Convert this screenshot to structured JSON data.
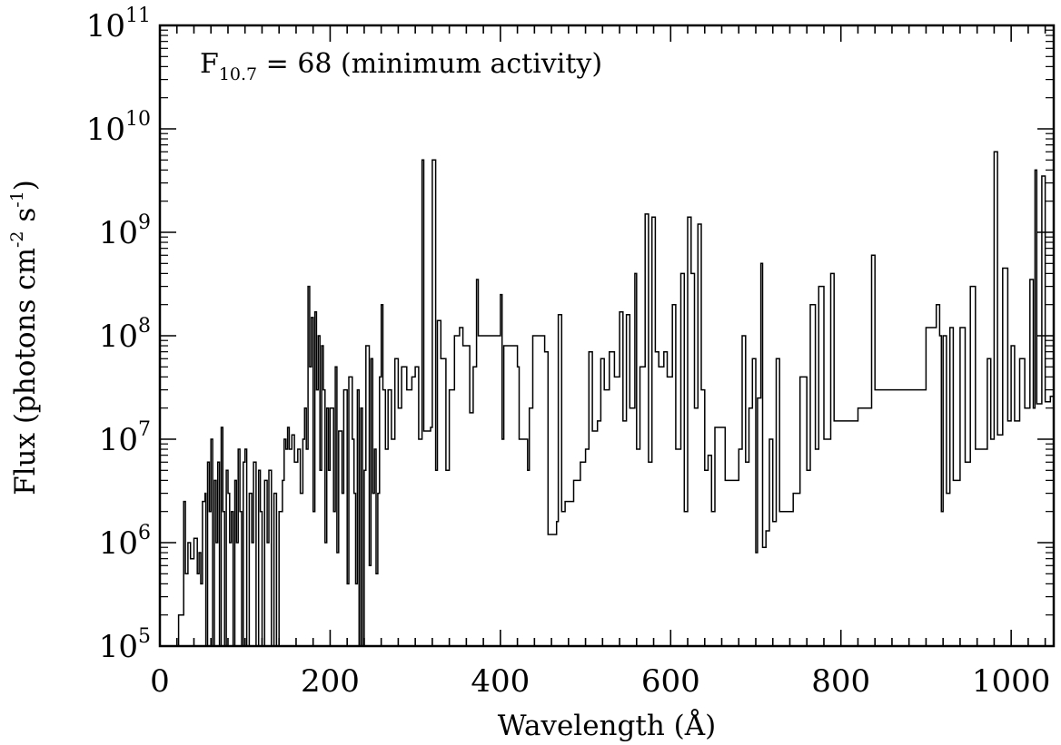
{
  "chart_data": {
    "type": "line",
    "annotation": {
      "prefix": "F",
      "subscript": "10.7",
      "suffix": " = 68 (minimum activity)"
    },
    "xlabel": "Wavelength (Å)",
    "ylabel": {
      "part1": "Flux (photons cm",
      "sup1": "-2",
      "part2": " s",
      "sup2": "-1",
      "part3": ")"
    },
    "xlim": [
      0,
      1050
    ],
    "ylim": [
      100000,
      100000000000
    ],
    "yscale": "log",
    "xticks": [
      {
        "value": 0,
        "label": "0"
      },
      {
        "value": 200,
        "label": "200"
      },
      {
        "value": 400,
        "label": "400"
      },
      {
        "value": 600,
        "label": "600"
      },
      {
        "value": 800,
        "label": "800"
      },
      {
        "value": 1000,
        "label": "1000"
      }
    ],
    "yticks": [
      {
        "value": 100000,
        "base": "10",
        "exp": "5"
      },
      {
        "value": 1000000,
        "base": "10",
        "exp": "6"
      },
      {
        "value": 10000000,
        "base": "10",
        "exp": "7"
      },
      {
        "value": 100000000,
        "base": "10",
        "exp": "8"
      },
      {
        "value": 1000000000,
        "base": "10",
        "exp": "9"
      },
      {
        "value": 10000000000,
        "base": "10",
        "exp": "10"
      },
      {
        "value": 100000000000,
        "base": "10",
        "exp": "11"
      }
    ],
    "grid": false,
    "series": [
      {
        "values": [
          [
            20,
            100000.0
          ],
          [
            22,
            200000.0
          ],
          [
            25,
            200000.0
          ],
          [
            28,
            2500000.0
          ],
          [
            30,
            500000.0
          ],
          [
            33,
            1000000.0
          ],
          [
            36,
            700000.0
          ],
          [
            40,
            1100000.0
          ],
          [
            44,
            500000.0
          ],
          [
            46,
            800000.0
          ],
          [
            48,
            400000.0
          ],
          [
            50,
            2500000.0
          ],
          [
            53,
            3000000.0
          ],
          [
            54,
            100000.0
          ],
          [
            56,
            6000000.0
          ],
          [
            58,
            2000000.0
          ],
          [
            60,
            10000000.0
          ],
          [
            62,
            100000.0
          ],
          [
            64,
            4000000.0
          ],
          [
            66,
            1000000.0
          ],
          [
            68,
            6000000.0
          ],
          [
            70,
            100000.0
          ],
          [
            72,
            13000000.0
          ],
          [
            74,
            2000000.0
          ],
          [
            76,
            100000.0
          ],
          [
            78,
            5000000.0
          ],
          [
            80,
            3000000.0
          ],
          [
            82,
            1000000.0
          ],
          [
            84,
            2000000.0
          ],
          [
            86,
            100000.0
          ],
          [
            88,
            4000000.0
          ],
          [
            90,
            1000000.0
          ],
          [
            92,
            8000000.0
          ],
          [
            94,
            2000000.0
          ],
          [
            96,
            100000.0
          ],
          [
            98,
            6000000.0
          ],
          [
            100,
            8000000.0
          ],
          [
            102,
            100000.0
          ],
          [
            105,
            3000000.0
          ],
          [
            108,
            1000000.0
          ],
          [
            110,
            6000000.0
          ],
          [
            113,
            100000.0
          ],
          [
            116,
            5000000.0
          ],
          [
            118,
            2000000.0
          ],
          [
            120,
            100000.0
          ],
          [
            123,
            4000000.0
          ],
          [
            126,
            1000000.0
          ],
          [
            128,
            5000000.0
          ],
          [
            131,
            100000.0
          ],
          [
            134,
            3000000.0
          ],
          [
            137,
            100000.0
          ],
          [
            140,
            2000000.0
          ],
          [
            144,
            4000000.0
          ],
          [
            146,
            10000000.0
          ],
          [
            148,
            8000000.0
          ],
          [
            150,
            13000000.0
          ],
          [
            152,
            8000000.0
          ],
          [
            155,
            11000000.0
          ],
          [
            158,
            6000000.0
          ],
          [
            162,
            8000000.0
          ],
          [
            165,
            3000000.0
          ],
          [
            168,
            10000000.0
          ],
          [
            170,
            20000000.0
          ],
          [
            172,
            8000000.0
          ],
          [
            174,
            300000000.0
          ],
          [
            176,
            50000000.0
          ],
          [
            178,
            150000000.0
          ],
          [
            180,
            2000000.0
          ],
          [
            182,
            170000000.0
          ],
          [
            184,
            30000000.0
          ],
          [
            186,
            100000000.0
          ],
          [
            188,
            5000000.0
          ],
          [
            190,
            80000000.0
          ],
          [
            192,
            30000000.0
          ],
          [
            194,
            1000000.0
          ],
          [
            196,
            20000000.0
          ],
          [
            198,
            5000000.0
          ],
          [
            200,
            20000000.0
          ],
          [
            204,
            2000000.0
          ],
          [
            206,
            50000000.0
          ],
          [
            208,
            800000.0
          ],
          [
            210,
            12000000.0
          ],
          [
            214,
            3000000.0
          ],
          [
            216,
            30000000.0
          ],
          [
            220,
            400000.0
          ],
          [
            222,
            40000000.0
          ],
          [
            226,
            10000000.0
          ],
          [
            228,
            3000000.0
          ],
          [
            230,
            400000.0
          ],
          [
            232,
            30000000.0
          ],
          [
            234,
            100000.0
          ],
          [
            236,
            20000000.0
          ],
          [
            238,
            100000.0
          ],
          [
            240,
            5000000.0
          ],
          [
            242,
            80000000.0
          ],
          [
            246,
            600000.0
          ],
          [
            248,
            60000000.0
          ],
          [
            250,
            3000000.0
          ],
          [
            252,
            8000000.0
          ],
          [
            254,
            500000.0
          ],
          [
            256,
            3000000.0
          ],
          [
            258,
            40000000.0
          ],
          [
            260,
            200000000.0
          ],
          [
            262,
            30000000.0
          ],
          [
            265,
            8000000.0
          ],
          [
            268,
            30000000.0
          ],
          [
            272,
            10000000.0
          ],
          [
            276,
            60000000.0
          ],
          [
            280,
            20000000.0
          ],
          [
            284,
            50000000.0
          ],
          [
            290,
            30000000.0
          ],
          [
            296,
            40000000.0
          ],
          [
            300,
            50000000.0
          ],
          [
            304,
            10000000.0
          ],
          [
            308,
            5000000000.0
          ],
          [
            310,
            12000000.0
          ],
          [
            318,
            13000000.0
          ],
          [
            320,
            5000000000.0
          ],
          [
            324,
            5000000.0
          ],
          [
            326,
            140000000.0
          ],
          [
            330,
            60000000.0
          ],
          [
            336,
            5000000.0
          ],
          [
            340,
            30000000.0
          ],
          [
            346,
            100000000.0
          ],
          [
            352,
            120000000.0
          ],
          [
            356,
            80000000.0
          ],
          [
            358,
            80000000.0
          ],
          [
            364,
            18000000.0
          ],
          [
            368,
            50000000.0
          ],
          [
            372,
            350000000.0
          ],
          [
            374,
            100000000.0
          ],
          [
            400,
            250000000.0
          ],
          [
            402,
            10000000.0
          ],
          [
            404,
            80000000.0
          ],
          [
            420,
            50000000.0
          ],
          [
            422,
            10000000.0
          ],
          [
            432,
            5000000.0
          ],
          [
            434,
            20000000.0
          ],
          [
            438,
            100000000.0
          ],
          [
            452,
            70000000.0
          ],
          [
            456,
            1200000.0
          ],
          [
            462,
            1200000.0
          ],
          [
            466,
            1600000.0
          ],
          [
            468,
            160000000.0
          ],
          [
            472,
            2000000.0
          ],
          [
            476,
            2500000.0
          ],
          [
            486,
            4000000.0
          ],
          [
            494,
            6000000.0
          ],
          [
            500,
            8000000.0
          ],
          [
            504,
            70000000.0
          ],
          [
            508,
            12000000.0
          ],
          [
            514,
            15000000.0
          ],
          [
            518,
            60000000.0
          ],
          [
            522,
            30000000.0
          ],
          [
            528,
            70000000.0
          ],
          [
            534,
            40000000.0
          ],
          [
            540,
            170000000.0
          ],
          [
            544,
            15000000.0
          ],
          [
            548,
            160000000.0
          ],
          [
            552,
            20000000.0
          ],
          [
            558,
            400000000.0
          ],
          [
            560,
            8000000.0
          ],
          [
            564,
            50000000.0
          ],
          [
            570,
            1500000000.0
          ],
          [
            574,
            6000000.0
          ],
          [
            578,
            1400000000.0
          ],
          [
            582,
            70000000.0
          ],
          [
            586,
            50000000.0
          ],
          [
            592,
            70000000.0
          ],
          [
            596,
            40000000.0
          ],
          [
            602,
            200000000.0
          ],
          [
            606,
            8000000.0
          ],
          [
            612,
            400000000.0
          ],
          [
            616,
            2000000.0
          ],
          [
            620,
            1400000000.0
          ],
          [
            624,
            400000000.0
          ],
          [
            628,
            20000000.0
          ],
          [
            632,
            1200000000.0
          ],
          [
            636,
            30000000.0
          ],
          [
            640,
            5000000.0
          ],
          [
            644,
            7000000.0
          ],
          [
            648,
            2000000.0
          ],
          [
            652,
            13000000.0
          ],
          [
            660,
            13000000.0
          ],
          [
            664,
            4000000.0
          ],
          [
            674,
            4000000.0
          ],
          [
            680,
            8000000.0
          ],
          [
            684,
            100000000.0
          ],
          [
            688,
            6000000.0
          ],
          [
            692,
            20000000.0
          ],
          [
            696,
            60000000.0
          ],
          [
            700,
            800000.0
          ],
          [
            702,
            25000000.0
          ],
          [
            706,
            500000000.0
          ],
          [
            708,
            900000.0
          ],
          [
            712,
            1300000.0
          ],
          [
            716,
            10000000.0
          ],
          [
            720,
            1600000.0
          ],
          [
            724,
            60000000.0
          ],
          [
            728,
            2000000.0
          ],
          [
            744,
            3000000.0
          ],
          [
            752,
            40000000.0
          ],
          [
            760,
            5000000.0
          ],
          [
            764,
            200000000.0
          ],
          [
            770,
            8000000.0
          ],
          [
            774,
            300000000.0
          ],
          [
            780,
            10000000.0
          ],
          [
            788,
            400000000.0
          ],
          [
            792,
            15000000.0
          ],
          [
            796,
            15000000.0
          ],
          [
            820,
            20000000.0
          ],
          [
            836,
            600000000.0
          ],
          [
            840,
            30000000.0
          ],
          [
            900,
            120000000.0
          ],
          [
            912,
            200000000.0
          ],
          [
            916,
            100000000.0
          ],
          [
            918,
            2000000.0
          ],
          [
            920,
            100000000.0
          ],
          [
            924,
            3000000.0
          ],
          [
            928,
            120000000.0
          ],
          [
            932,
            4000000.0
          ],
          [
            940,
            120000000.0
          ],
          [
            946,
            6000000.0
          ],
          [
            952,
            300000000.0
          ],
          [
            958,
            8000000.0
          ],
          [
            972,
            60000000.0
          ],
          [
            976,
            10000000.0
          ],
          [
            980,
            6000000000.0
          ],
          [
            984,
            11000000.0
          ],
          [
            990,
            450000000.0
          ],
          [
            996,
            15000000.0
          ],
          [
            1000,
            80000000.0
          ],
          [
            1004,
            15000000.0
          ],
          [
            1010,
            60000000.0
          ],
          [
            1016,
            20000000.0
          ],
          [
            1022,
            350000000.0
          ],
          [
            1026,
            20000000.0
          ],
          [
            1028,
            4000000000.0
          ],
          [
            1030,
            22000000.0
          ],
          [
            1036,
            3500000000.0
          ],
          [
            1040,
            23000000.0
          ],
          [
            1046,
            26000000.0
          ],
          [
            1050,
            26000000.0
          ]
        ]
      }
    ]
  }
}
